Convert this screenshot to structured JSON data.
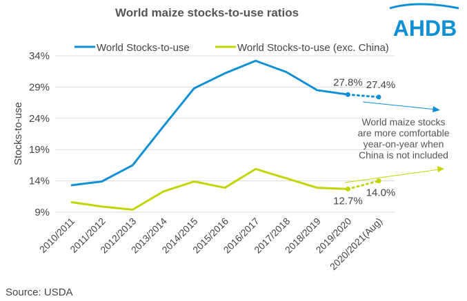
{
  "chart_data": {
    "type": "line",
    "title": "World maize stocks-to-use ratios",
    "ylabel": "Stocks-to-use",
    "xlabel": "",
    "ylim": [
      9,
      34
    ],
    "yticks": [
      9,
      14,
      19,
      24,
      29,
      34
    ],
    "ytick_labels": [
      "9%",
      "14%",
      "19%",
      "24%",
      "29%",
      "34%"
    ],
    "grid": true,
    "legend_position": "top",
    "categories": [
      "2010/2011",
      "2011/2012",
      "2012/2013",
      "2013/2014",
      "2014/2015",
      "2015/2016",
      "2016/2017",
      "2017/2018",
      "2018/2019",
      "2019/2020",
      "2020/2021(Aug)"
    ],
    "series": [
      {
        "name": "World Stocks-to-use",
        "color": "#0f8fd4",
        "values": [
          13.3,
          13.9,
          16.5,
          22.7,
          28.8,
          31.2,
          33.2,
          31.4,
          28.5,
          27.8,
          27.4
        ],
        "forecast_from_index": 9
      },
      {
        "name": "World Stocks-to-use (exc. China)",
        "color": "#c3d400",
        "values": [
          10.6,
          9.9,
          9.4,
          12.3,
          13.9,
          12.9,
          15.9,
          14.4,
          12.9,
          12.7,
          14.0
        ],
        "forecast_from_index": 9
      }
    ],
    "data_labels": [
      {
        "series": 0,
        "index": 9,
        "text": "27.8%"
      },
      {
        "series": 0,
        "index": 10,
        "text": "27.4%"
      },
      {
        "series": 1,
        "index": 9,
        "text": "12.7%"
      },
      {
        "series": 1,
        "index": 10,
        "text": "14.0%"
      }
    ],
    "annotation": [
      "World maize stocks",
      "are more comfortable",
      "year-on-year when",
      "China is not included"
    ]
  },
  "logo": "AHDB",
  "source": "Source: USDA"
}
